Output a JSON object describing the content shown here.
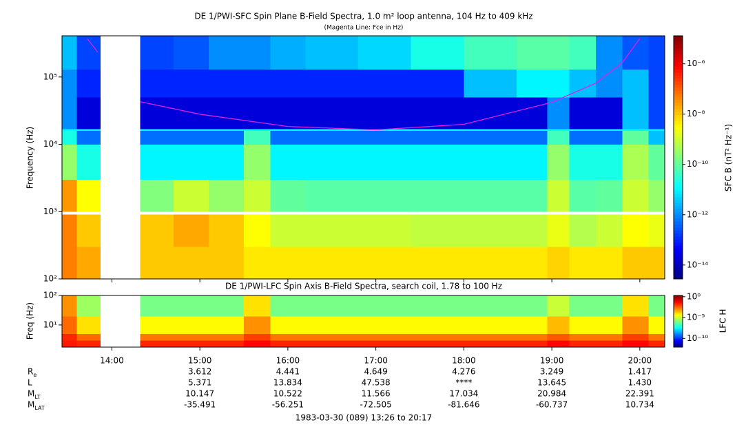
{
  "chart_data": [
    {
      "type": "heatmap",
      "title": "DE 1/PWI-SFC  Spin Plane B-Field Spectra, 1.0 m² loop antenna, 104 Hz to 409 kHz",
      "subtitle": "(Magenta Line: Fce in Hz)",
      "y_label": "Frequency (Hz)",
      "colorbar_label": "SFC B (nT² Hz⁻¹)",
      "log_y": true,
      "log_color": true,
      "xlim": [
        13.433,
        20.283
      ],
      "ylim": [
        100,
        409000
      ],
      "yticks": [
        {
          "value": 100,
          "label": "10²"
        },
        {
          "value": 1000,
          "label": "10³"
        },
        {
          "value": 10000,
          "label": "10⁴"
        },
        {
          "value": 100000,
          "label": "10⁵"
        }
      ],
      "clim": [
        2.8e-15,
        1.3e-05
      ],
      "cticks": [
        {
          "value": 1e-06,
          "label": "10⁻⁶"
        },
        {
          "value": 1e-08,
          "label": "10⁻⁸"
        },
        {
          "value": 1e-10,
          "label": "10⁻¹⁰"
        },
        {
          "value": 1e-12,
          "label": "10⁻¹²"
        },
        {
          "value": 1e-14,
          "label": "10⁻¹⁴"
        }
      ],
      "x": [
        13.433,
        13.6,
        13.87,
        14.32,
        14.7,
        15.1,
        15.5,
        15.8,
        16.2,
        16.8,
        17.4,
        18.0,
        18.6,
        18.95,
        19.2,
        19.5,
        19.8,
        20.1,
        20.283
      ],
      "y": [
        100,
        300,
        900,
        1000,
        3000,
        10000,
        16000,
        17000,
        50000,
        130000,
        409000
      ],
      "z": [
        [
          5e-08,
          2e-08,
          null,
          1e-08,
          1e-08,
          1e-08,
          5e-09,
          5e-09,
          5e-09,
          5e-09,
          5e-09,
          5e-09,
          5e-09,
          8e-09,
          5e-09,
          5e-09,
          1e-08,
          1e-08
        ],
        [
          5e-08,
          1e-08,
          null,
          1e-08,
          2e-08,
          1e-08,
          3e-09,
          1e-09,
          1e-09,
          1e-09,
          8e-10,
          8e-10,
          8e-10,
          2e-09,
          6e-10,
          1e-09,
          3e-09,
          2e-09
        ],
        [
          null,
          null,
          null,
          null,
          null,
          null,
          null,
          null,
          null,
          null,
          null,
          null,
          null,
          null,
          null,
          null,
          null,
          null
        ],
        [
          3e-08,
          3e-09,
          null,
          2e-10,
          1e-09,
          3e-10,
          1e-09,
          1e-10,
          8e-11,
          8e-11,
          8e-11,
          8e-11,
          8e-11,
          1e-09,
          8e-11,
          1e-10,
          1e-09,
          3e-10
        ],
        [
          3e-10,
          2e-11,
          null,
          1e-11,
          1e-11,
          1e-11,
          3e-10,
          1e-11,
          1e-11,
          1e-11,
          1e-11,
          1e-11,
          1e-11,
          3e-10,
          2e-11,
          2e-11,
          5e-10,
          1e-10
        ],
        [
          2e-11,
          5e-13,
          null,
          5e-13,
          5e-13,
          5e-13,
          5e-11,
          5e-13,
          5e-13,
          5e-13,
          5e-13,
          5e-13,
          5e-13,
          5e-11,
          5e-13,
          5e-13,
          1e-10,
          3e-12
        ],
        [
          1e-11,
          1e-11,
          null,
          1e-11,
          1e-11,
          1e-11,
          1e-11,
          1e-11,
          1e-11,
          1e-11,
          1e-11,
          1e-11,
          1e-11,
          1e-11,
          1e-11,
          1e-11,
          1e-11,
          1e-11
        ],
        [
          1e-12,
          2e-14,
          null,
          2e-14,
          2e-14,
          2e-14,
          2e-14,
          2e-14,
          2e-14,
          2e-14,
          2e-14,
          2e-14,
          2e-14,
          1e-12,
          2e-14,
          2e-14,
          3e-12,
          2e-13
        ],
        [
          1e-12,
          1e-13,
          null,
          1e-13,
          1e-13,
          1e-13,
          1e-13,
          1e-13,
          1e-13,
          1e-13,
          1e-13,
          3e-12,
          1e-11,
          1e-11,
          3e-12,
          1e-12,
          3e-12,
          2e-13
        ],
        [
          3e-12,
          2e-13,
          null,
          2e-13,
          3e-13,
          1e-12,
          1e-12,
          2e-12,
          3e-12,
          5e-12,
          2e-11,
          5e-11,
          8e-11,
          8e-11,
          5e-11,
          1e-12,
          3e-13,
          2e-13
        ]
      ],
      "line": {
        "color": "#e020e0",
        "x": [
          13.72,
          13.84,
          14.0,
          14.32,
          15.0,
          16.0,
          17.0,
          18.0,
          19.0,
          19.5,
          19.8,
          20.0
        ],
        "values": [
          372000,
          233000,
          null,
          43000,
          28000,
          18400,
          16400,
          19800,
          42000,
          81000,
          163000,
          372000
        ]
      }
    },
    {
      "type": "heatmap",
      "title": "DE 1/PWI-LFC  Spin Axis B-Field Spectra, search coil, 1.78 to 100 Hz",
      "y_label": "Freq (Hz)",
      "colorbar_label": "LFC H",
      "log_y": true,
      "log_color": true,
      "xlim": [
        13.433,
        20.283
      ],
      "xticks": [
        {
          "value": 14,
          "label": "14:00"
        },
        {
          "value": 15,
          "label": "15:00"
        },
        {
          "value": 16,
          "label": "16:00"
        },
        {
          "value": 17,
          "label": "17:00"
        },
        {
          "value": 18,
          "label": "18:00"
        },
        {
          "value": 19,
          "label": "19:00"
        },
        {
          "value": 20,
          "label": "20:00"
        }
      ],
      "ylim": [
        1.78,
        100
      ],
      "yticks": [
        {
          "value": 10,
          "label": "10¹"
        },
        {
          "value": 100,
          "label": "10²"
        }
      ],
      "clim": [
        8e-13,
        2
      ],
      "cticks": [
        {
          "value": 1,
          "label": "10⁰"
        },
        {
          "value": 1e-05,
          "label": "10⁻⁵"
        },
        {
          "value": 1e-10,
          "label": "10⁻¹⁰"
        }
      ],
      "x": [
        13.433,
        13.6,
        13.87,
        14.32,
        14.7,
        15.1,
        15.5,
        15.8,
        16.2,
        16.8,
        17.4,
        18.0,
        18.6,
        18.95,
        19.2,
        19.5,
        19.8,
        20.1,
        20.283
      ],
      "y": [
        1.78,
        3,
        5,
        20,
        100
      ],
      "z": [
        [
          0.03,
          0.02,
          null,
          0.02,
          0.02,
          0.02,
          0.05,
          0.02,
          0.02,
          0.02,
          0.02,
          0.02,
          0.02,
          0.05,
          0.02,
          0.02,
          0.05,
          0.02
        ],
        [
          0.02,
          0.003,
          null,
          0.002,
          0.002,
          0.002,
          0.01,
          0.002,
          0.002,
          0.002,
          0.002,
          0.002,
          0.002,
          0.005,
          0.002,
          0.002,
          0.01,
          0.002
        ],
        [
          0.003,
          0.0001,
          null,
          5e-05,
          5e-05,
          5e-05,
          0.001,
          5e-05,
          5e-05,
          5e-05,
          5e-05,
          5e-05,
          5e-05,
          0.0003,
          5e-05,
          5e-05,
          0.001,
          5e-05
        ],
        [
          0.001,
          3e-06,
          null,
          1e-06,
          1e-06,
          1e-06,
          0.0001,
          1e-06,
          1e-06,
          1e-06,
          1e-06,
          1e-06,
          1e-06,
          1e-05,
          1e-06,
          1e-06,
          0.0001,
          1e-06
        ]
      ]
    }
  ],
  "ephemeris": {
    "rows": [
      {
        "label": "R",
        "sub": "e",
        "values": [
          "3.612",
          "4.441",
          "4.649",
          "4.276",
          "3.249",
          "1.417"
        ]
      },
      {
        "label": "L",
        "values": [
          "5.371",
          "13.834",
          "47.538",
          "****",
          "13.645",
          "1.430"
        ]
      },
      {
        "label": "M",
        "sub": "LT",
        "values": [
          "10.147",
          "10.522",
          "11.566",
          "17.034",
          "20.984",
          "22.391"
        ]
      },
      {
        "label": "M",
        "sub": "LAT",
        "values": [
          "-35.491",
          "-56.251",
          "-72.505",
          "-81.646",
          "-60.737",
          "10.734"
        ]
      }
    ],
    "footer": "1983-03-30 (089) 13:26 to 20:17"
  }
}
